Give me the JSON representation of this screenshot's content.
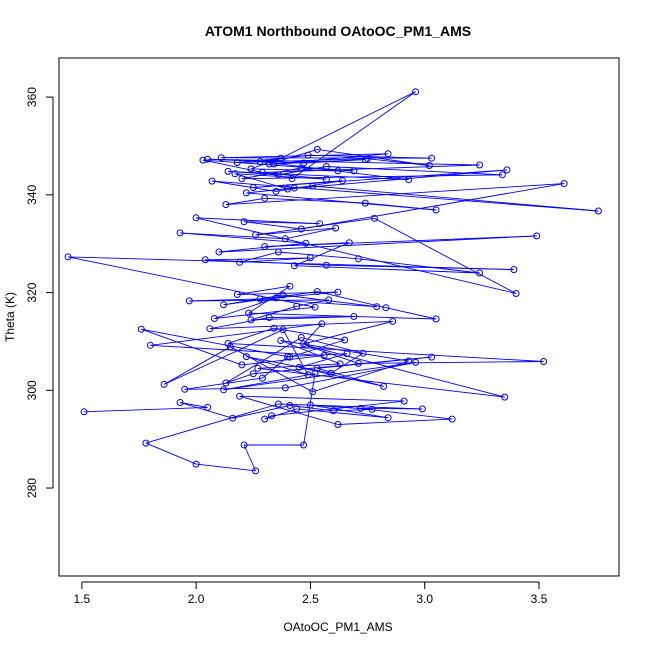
{
  "chart_data": {
    "type": "scatter",
    "title": "ATOM1 Northbound OAtoOC_PM1_AMS",
    "xlabel": "OAtoOC_PM1_AMS",
    "ylabel": "Theta (K)",
    "xlim": [
      1.4,
      3.85
    ],
    "ylim": [
      262,
      368
    ],
    "xticks": [
      "1.5",
      "2.0",
      "2.5",
      "3.0",
      "3.5"
    ],
    "yticks": [
      "280",
      "300",
      "320",
      "340",
      "360"
    ],
    "grid": false,
    "legend": "none",
    "series_color": "#0000ff",
    "points_connected": true,
    "series": [
      {
        "x": [
          1.51,
          2.05,
          1.93,
          2.16,
          2.41,
          2.6,
          2.77,
          2.5,
          2.84,
          2.44,
          2.3,
          2.33,
          2.91,
          2.19,
          2.62,
          3.12,
          2.72,
          2.99,
          2.36,
          1.78,
          2.0,
          2.26,
          2.21,
          2.47,
          2.52,
          2.12,
          2.96,
          2.39,
          1.95,
          2.29,
          2.4,
          2.66,
          2.45,
          2.82,
          2.53,
          3.03,
          2.25,
          2.13,
          2.46,
          2.73,
          2.59,
          2.22,
          2.49,
          2.38,
          1.86,
          2.15,
          2.51,
          2.93,
          2.37,
          2.63,
          2.27,
          3.35,
          2.48,
          2.71,
          3.52,
          2.14,
          2.34,
          2.65,
          2.41,
          1.76,
          2.2,
          2.56,
          1.8,
          2.55,
          2.47,
          2.86,
          2.06,
          2.32,
          2.69,
          2.24,
          2.44,
          2.58,
          1.97,
          2.28,
          2.79,
          2.38,
          2.12,
          2.53,
          2.83,
          3.05,
          2.23,
          2.41,
          2.18,
          2.62,
          2.35,
          2.08,
          2.52,
          1.44,
          3.39,
          2.57,
          2.04,
          2.5,
          2.19,
          2.36,
          2.71,
          3.24,
          2.43,
          2.67,
          2.3,
          3.49,
          2.1,
          2.48,
          1.93,
          2.39,
          2.61,
          2.26,
          2.78,
          3.4,
          2.0,
          2.54,
          2.21,
          2.46,
          3.61,
          2.13,
          2.3,
          2.74,
          3.05,
          2.22,
          2.43,
          2.51,
          3.76,
          2.07,
          2.35,
          2.64,
          2.25,
          3.36,
          2.4,
          2.17,
          2.57,
          2.29,
          3.24,
          2.05,
          2.47,
          2.74,
          2.34,
          2.84,
          2.11,
          3.03,
          2.49,
          2.28,
          2.93,
          2.14,
          2.36,
          2.57,
          3.34,
          2.2,
          2.46,
          2.69,
          2.03,
          2.42,
          2.96,
          2.32,
          2.53,
          3.02,
          2.75,
          2.18,
          2.37,
          2.24,
          2.62
        ],
        "y": [
          295.6,
          296.5,
          297.5,
          294.3,
          296.9,
          295.8,
          296.1,
          297.0,
          294.4,
          296.2,
          294.1,
          294.8,
          297.8,
          298.8,
          293.0,
          294.1,
          296.3,
          296.2,
          297.2,
          289.2,
          284.9,
          283.5,
          288.8,
          288.8,
          303.4,
          300.1,
          305.7,
          300.5,
          300.2,
          302.5,
          306.9,
          307.5,
          304.7,
          300.8,
          304.5,
          306.8,
          303.4,
          301.5,
          310.8,
          307.6,
          303.5,
          306.9,
          303.2,
          312.4,
          301.2,
          308.9,
          299.7,
          306.0,
          310.2,
          305.4,
          304.5,
          298.6,
          309.2,
          305.5,
          305.9,
          309.6,
          312.7,
          310.3,
          306.8,
          312.5,
          305.2,
          307.1,
          309.2,
          313.6,
          309.5,
          314.1,
          312.6,
          314.9,
          315.1,
          314.4,
          317.2,
          318.5,
          318.3,
          318.7,
          317.1,
          319.5,
          317.5,
          320.2,
          316.9,
          314.6,
          315.8,
          321.3,
          319.6,
          320.1,
          318.9,
          314.7,
          317.0,
          327.3,
          324.7,
          325.6,
          326.7,
          327.1,
          326.2,
          328.3,
          326.9,
          324.0,
          325.5,
          330.2,
          329.4,
          331.6,
          328.3,
          330.1,
          332.2,
          331.0,
          333.2,
          331.8,
          335.2,
          319.8,
          335.3,
          334.1,
          334.5,
          333.0,
          342.3,
          338.0,
          339.3,
          338.3,
          336.9,
          340.4,
          341.4,
          341.8,
          336.7,
          342.8,
          340.7,
          342.9,
          341.5,
          345.1,
          341.2,
          344.3,
          343.2,
          344.6,
          346.1,
          347.3,
          346.5,
          347.2,
          346.3,
          348.4,
          347.6,
          347.5,
          348.1,
          346.8,
          343.1,
          344.8,
          344.1,
          345.8,
          344.1,
          343.3,
          345.5,
          344.9,
          347.1,
          343.3,
          361.1,
          346.3,
          349.3,
          346.0,
          347.4,
          346.6,
          347.5,
          345.3,
          344.9
        ]
      }
    ]
  }
}
